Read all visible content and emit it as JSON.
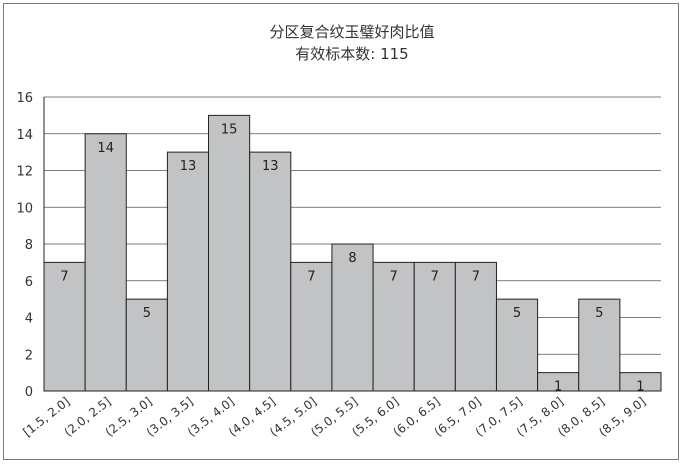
{
  "chart_data": {
    "type": "bar",
    "title": "分区复合纹玉璧好肉比值",
    "subtitle": "有效标本数: 115",
    "xlabel": "",
    "ylabel": "",
    "categories": [
      "[1.5, 2.0]",
      "(2.0, 2.5]",
      "(2.5, 3.0]",
      "(3.0, 3.5]",
      "(3.5, 4.0]",
      "(4.0, 4.5]",
      "(4.5, 5.0]",
      "(5.0, 5.5]",
      "(5.5, 6.0]",
      "(6.0, 6.5]",
      "(6.5, 7.0]",
      "(7.0, 7.5]",
      "(7.5, 8.0]",
      "(8.0, 8.5]",
      "(8.5, 9.0]"
    ],
    "values": [
      7,
      14,
      5,
      13,
      15,
      13,
      7,
      8,
      7,
      7,
      7,
      5,
      1,
      5,
      1
    ],
    "y_tick_labels": [
      "0",
      "2",
      "4",
      "6",
      "8",
      "10",
      "12",
      "14",
      "16"
    ],
    "ylim": [
      0,
      16
    ],
    "grid": true,
    "colors": {
      "bar_fill": "#c2c3c5",
      "bar_stroke": "#222222"
    }
  }
}
